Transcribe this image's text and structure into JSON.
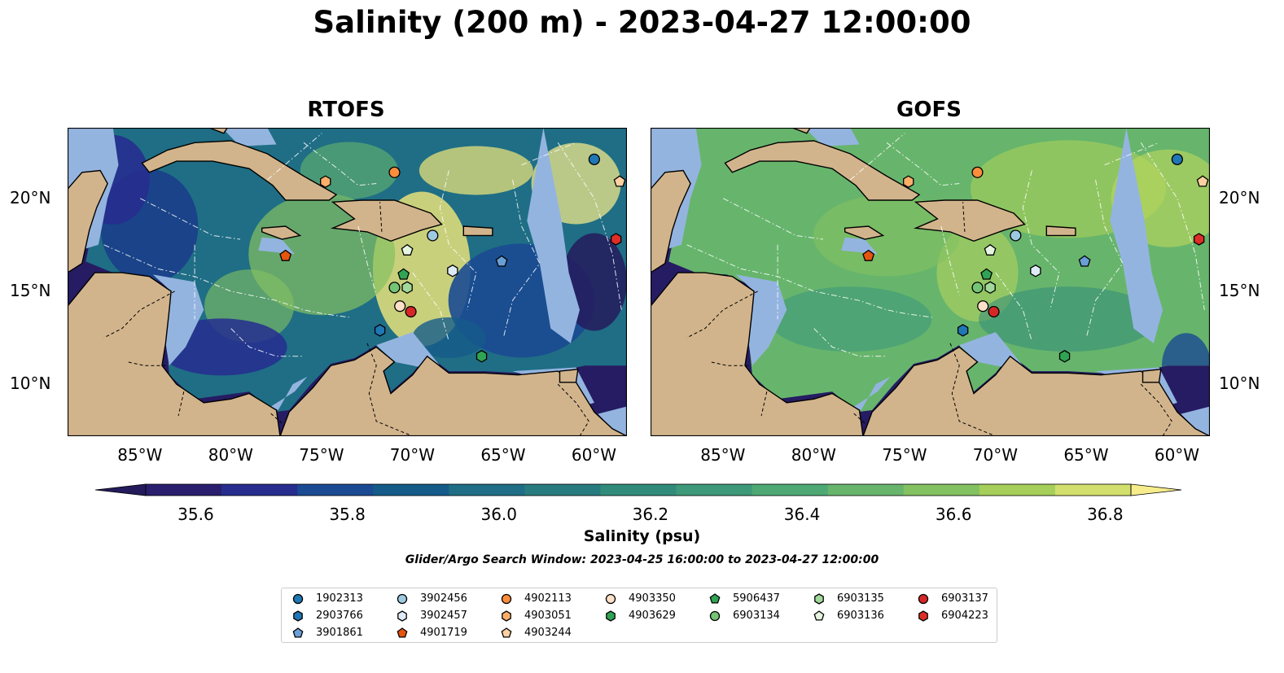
{
  "title": "Salinity (200 m) - 2023-04-27 12:00:00",
  "panels": [
    {
      "title": "RTOFS"
    },
    {
      "title": "GOFS"
    }
  ],
  "lon_ticks": [
    "85°W",
    "80°W",
    "75°W",
    "70°W",
    "65°W",
    "60°W"
  ],
  "lat_ticks": [
    "20°N",
    "15°N",
    "10°N"
  ],
  "colorbar": {
    "label": "Salinity (psu)",
    "ticks": [
      "35.6",
      "35.8",
      "36.0",
      "36.2",
      "36.4",
      "36.6",
      "36.8"
    ],
    "colors": [
      "#2a1e6e",
      "#262d8f",
      "#1a4a92",
      "#155b8a",
      "#1f6e85",
      "#287c80",
      "#318b7a",
      "#3d9979",
      "#4ea874",
      "#67b56c",
      "#84c161",
      "#a5ce5a",
      "#d3df6c"
    ],
    "extend_min": "#241b5c",
    "extend_max": "#f7ec8c"
  },
  "search_window": "Glider/Argo Search Window: 2023-04-25 16:00:00 to 2023-04-27 12:00:00",
  "colors": {
    "land": "#d2b48c",
    "shelf": "#94b4e0",
    "deep": "#261c63"
  },
  "legend": [
    {
      "id": "1902313",
      "marker": "circle",
      "color": "#1f77b4"
    },
    {
      "id": "2903766",
      "marker": "hexagon",
      "color": "#1f77b4"
    },
    {
      "id": "3901861",
      "marker": "pentagon",
      "color": "#6a9fd6"
    },
    {
      "id": "3902456",
      "marker": "circle",
      "color": "#9ecae1"
    },
    {
      "id": "3902457",
      "marker": "hexagon",
      "color": "#deebf7"
    },
    {
      "id": "4901719",
      "marker": "pentagon",
      "color": "#e6550d"
    },
    {
      "id": "4902113",
      "marker": "circle",
      "color": "#fd8d3c"
    },
    {
      "id": "4903051",
      "marker": "hexagon",
      "color": "#fdae6b"
    },
    {
      "id": "4903244",
      "marker": "pentagon",
      "color": "#fdd0a2"
    },
    {
      "id": "4903350",
      "marker": "circle",
      "color": "#fde0c8"
    },
    {
      "id": "4903629",
      "marker": "hexagon",
      "color": "#31a354"
    },
    {
      "id": "5906437",
      "marker": "pentagon",
      "color": "#31a354"
    },
    {
      "id": "6903134",
      "marker": "circle",
      "color": "#74c476"
    },
    {
      "id": "6903135",
      "marker": "hexagon",
      "color": "#a1d99b"
    },
    {
      "id": "6903136",
      "marker": "pentagon",
      "color": "#e5f5e0"
    },
    {
      "id": "6903137",
      "marker": "circle",
      "color": "#d62728"
    },
    {
      "id": "6904223",
      "marker": "hexagon",
      "color": "#de2d26"
    }
  ],
  "floats": [
    {
      "id": "1902313",
      "lon": -60.0,
      "lat": 22.1
    },
    {
      "id": "2903766",
      "lon": -71.8,
      "lat": 12.9
    },
    {
      "id": "3901861",
      "lon": -65.1,
      "lat": 16.6
    },
    {
      "id": "3902456",
      "lon": -68.9,
      "lat": 18.0
    },
    {
      "id": "3902457",
      "lon": -67.8,
      "lat": 16.1
    },
    {
      "id": "4901719",
      "lon": -77.0,
      "lat": 16.9
    },
    {
      "id": "4902113",
      "lon": -71.0,
      "lat": 21.4
    },
    {
      "id": "4903051",
      "lon": -74.8,
      "lat": 20.9
    },
    {
      "id": "4903244",
      "lon": -58.6,
      "lat": 20.9
    },
    {
      "id": "4903350",
      "lon": -70.7,
      "lat": 14.2
    },
    {
      "id": "4903629",
      "lon": -66.2,
      "lat": 11.5
    },
    {
      "id": "5906437",
      "lon": -70.5,
      "lat": 15.9
    },
    {
      "id": "6903134",
      "lon": -71.0,
      "lat": 15.2
    },
    {
      "id": "6903135",
      "lon": -70.3,
      "lat": 15.2
    },
    {
      "id": "6903136",
      "lon": -70.3,
      "lat": 17.2
    },
    {
      "id": "6903137",
      "lon": -70.1,
      "lat": 13.9
    },
    {
      "id": "6904223",
      "lon": -58.8,
      "lat": 17.8
    }
  ],
  "extent": {
    "lon": [
      -89.0,
      -58.2
    ],
    "lat": [
      7.2,
      23.8
    ]
  }
}
